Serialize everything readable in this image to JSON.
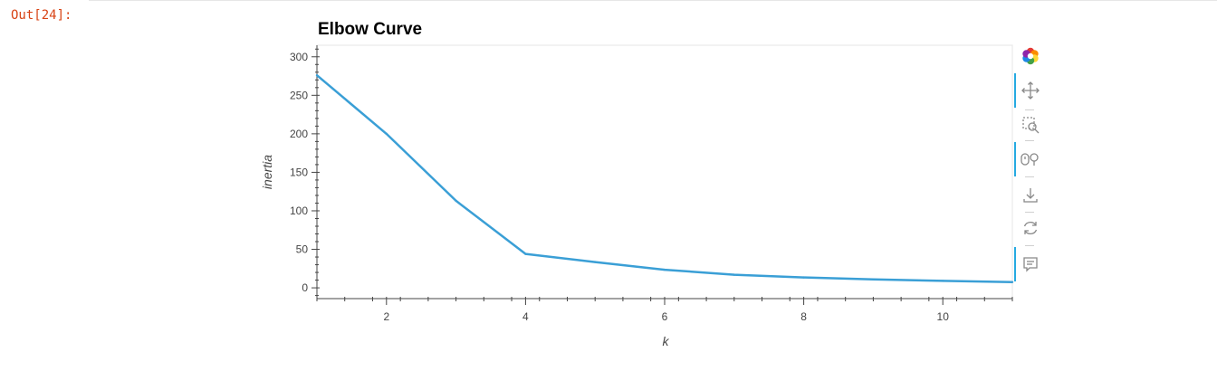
{
  "cell": {
    "prompt": "Out[24]:"
  },
  "chart_data": {
    "type": "line",
    "title": "Elbow Curve",
    "xlabel": "k",
    "ylabel": "inertia",
    "x": [
      1,
      2,
      3,
      4,
      5,
      6,
      7,
      8,
      9,
      10,
      11
    ],
    "series": [
      {
        "values": [
          276.0,
          200.0,
          113.0,
          44.0,
          33.5,
          23.5,
          17.0,
          13.5,
          11.0,
          9.0,
          7.5
        ]
      }
    ],
    "xlim": [
      1.0,
      11.0
    ],
    "ylim": [
      -14,
      315
    ],
    "xticks": [
      2,
      4,
      6,
      8,
      10
    ],
    "yticks": [
      0,
      50,
      100,
      150,
      200,
      250,
      300
    ],
    "line_color": "#3a9fd6",
    "grid": false
  },
  "toolbar": {
    "tools": [
      {
        "name": "bokeh-logo-icon",
        "active": false
      },
      {
        "name": "pan-icon",
        "active": true
      },
      {
        "name": "box-zoom-icon",
        "active": false
      },
      {
        "name": "wheel-zoom-icon",
        "active": true
      },
      {
        "name": "save-icon",
        "active": false
      },
      {
        "name": "reset-icon",
        "active": false
      },
      {
        "name": "hover-icon",
        "active": true
      }
    ],
    "accent_color": "#26aae1"
  }
}
